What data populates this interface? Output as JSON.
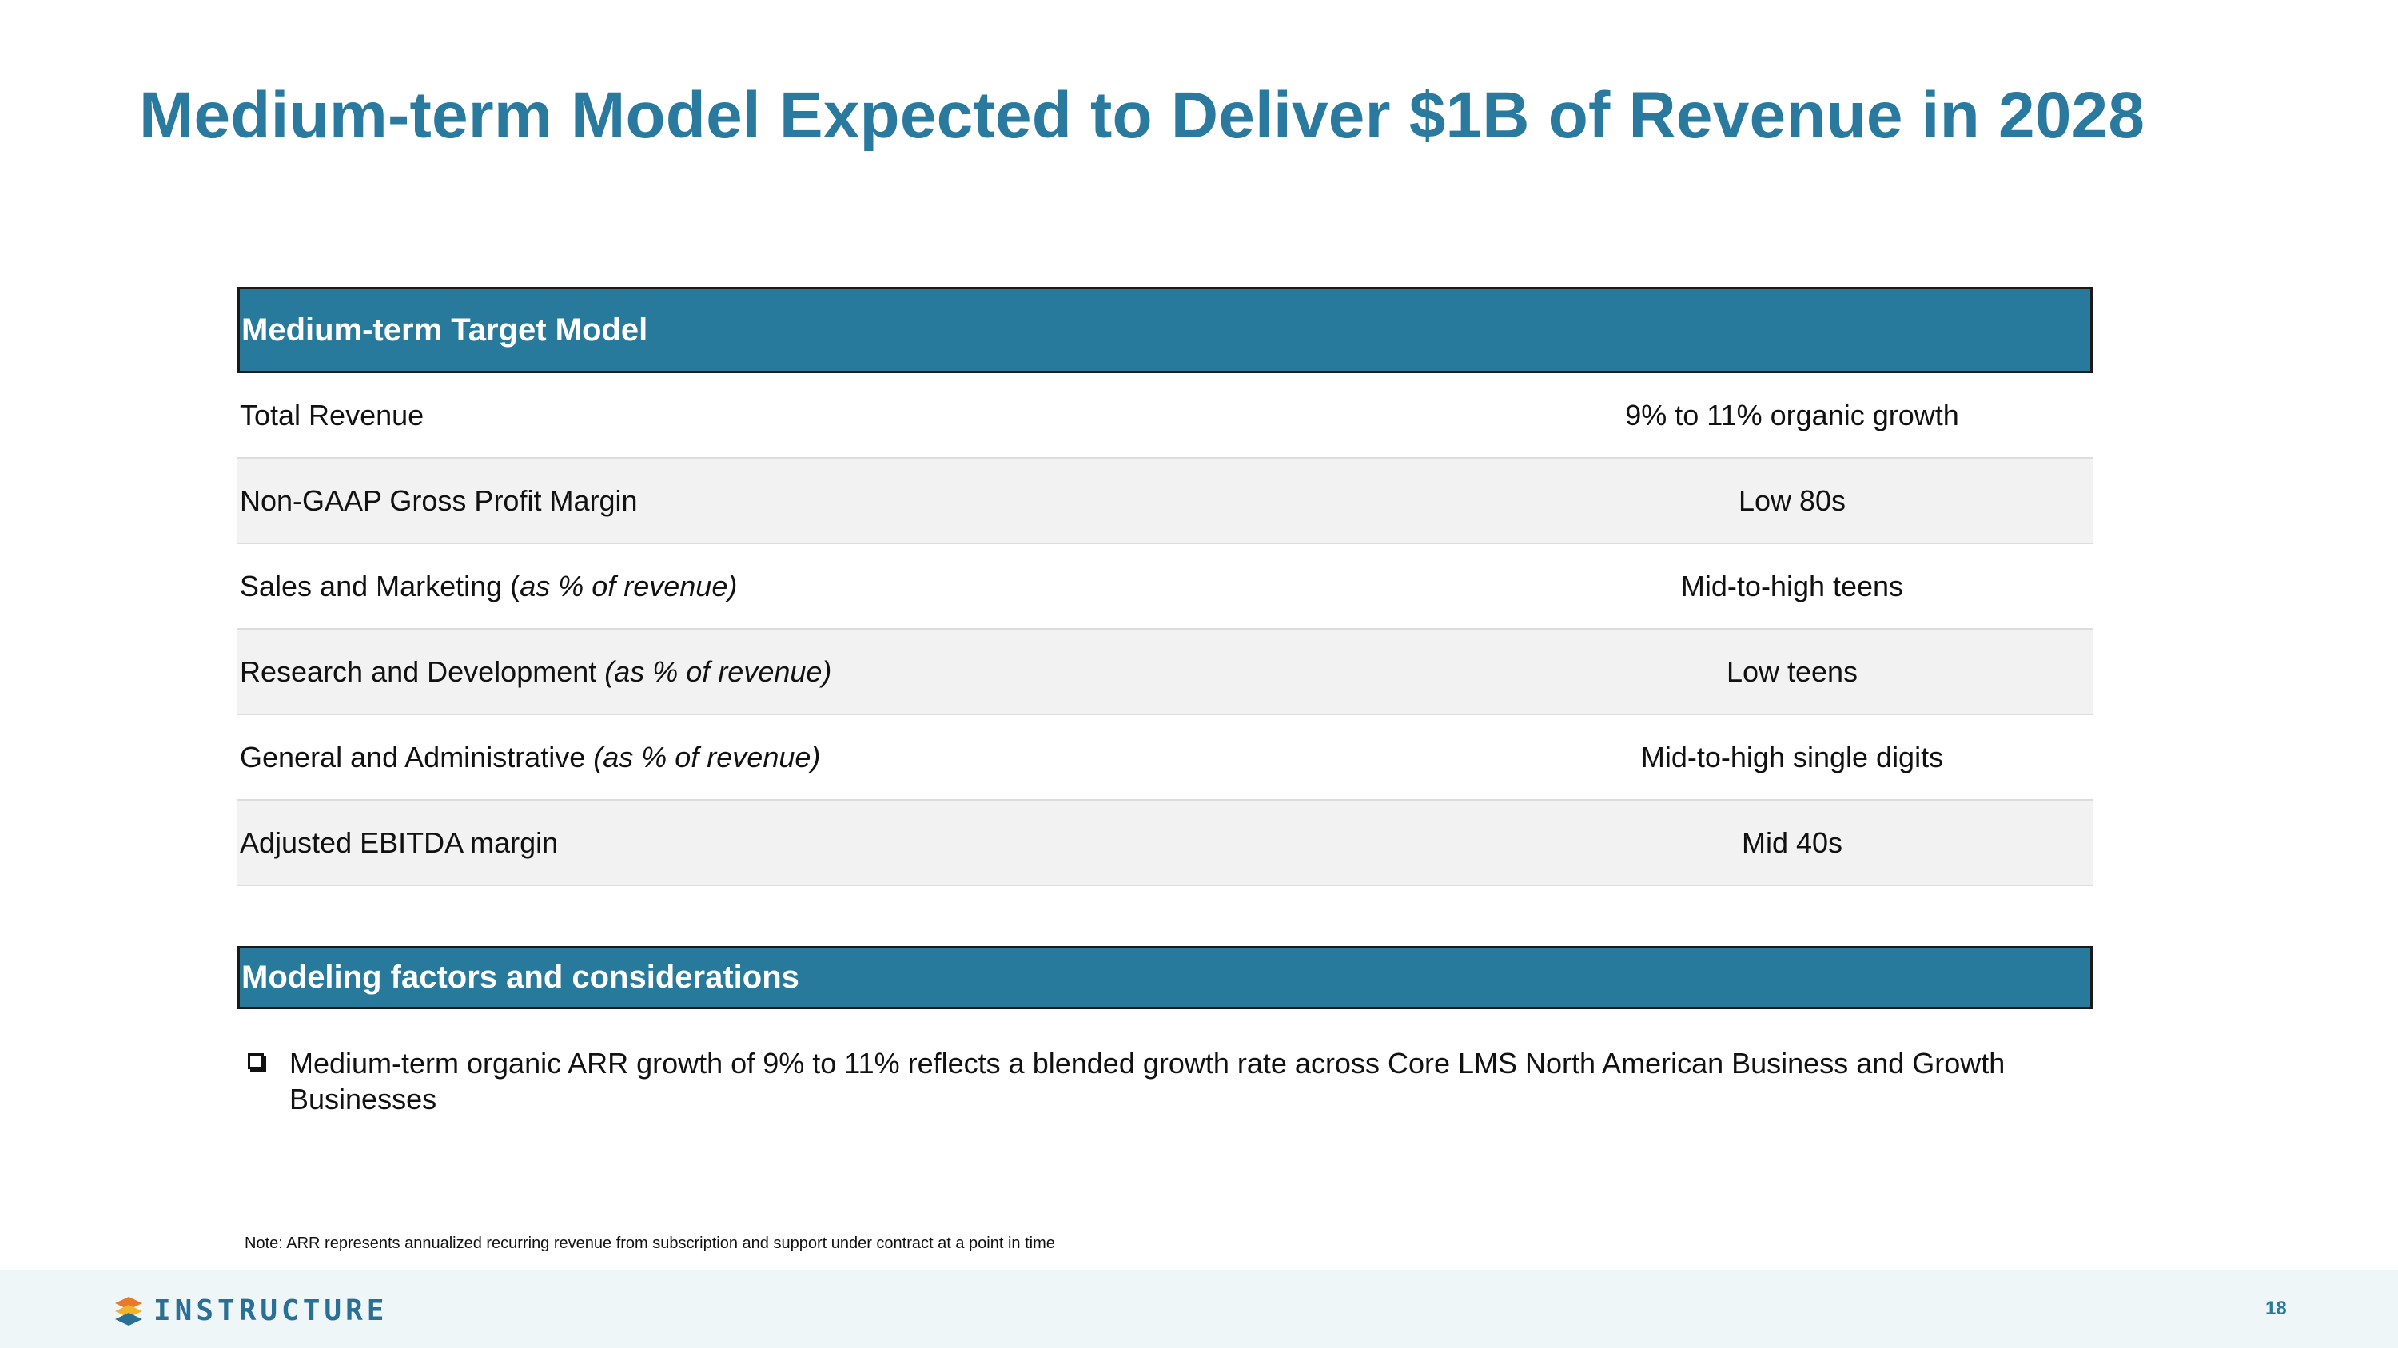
{
  "title": "Medium-term Model Expected to Deliver $1B of Revenue in 2028",
  "target_model": {
    "header": "Medium-term Target Model",
    "rows": [
      {
        "label": "Total Revenue",
        "qualifier": "",
        "value": "9% to 11% organic growth"
      },
      {
        "label": "Non-GAAP Gross Profit Margin",
        "qualifier": "",
        "value": "Low 80s"
      },
      {
        "label": "Sales and Marketing (",
        "qualifier": "as % of revenue)",
        "value": "Mid-to-high teens"
      },
      {
        "label": "Research and Development ",
        "qualifier": "(as % of revenue)",
        "value": "Low teens"
      },
      {
        "label": "General and Administrative ",
        "qualifier": "(as % of revenue)",
        "value": "Mid-to-high single digits"
      },
      {
        "label": "Adjusted EBITDA margin",
        "qualifier": "",
        "value": "Mid 40s"
      }
    ]
  },
  "factors": {
    "header": "Modeling factors and considerations",
    "bullets": [
      "Medium-term organic ARR growth of 9% to 11% reflects a blended growth rate across Core LMS North American Business and Growth Businesses"
    ]
  },
  "note": "Note: ARR represents annualized recurring revenue from subscription and support under contract at a point in time",
  "footer": {
    "logo_text": "INSTRUCTURE",
    "page_number": "18"
  },
  "colors": {
    "accent": "#297a9e",
    "header_bg": "#287a9d",
    "alt_row": "#f2f2f2",
    "footer_bg": "#eef6f7"
  }
}
